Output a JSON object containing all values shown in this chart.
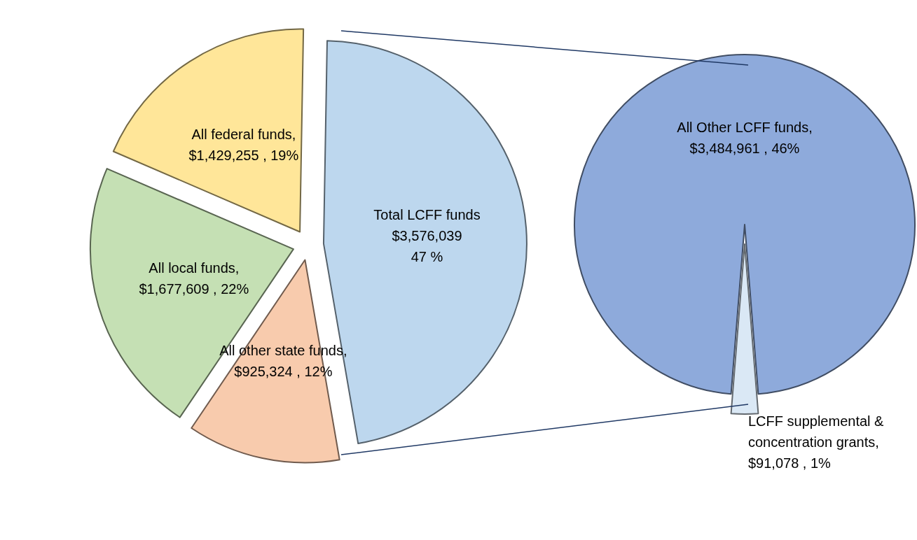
{
  "chart_data": [
    {
      "type": "pie",
      "categories": [
        "Total LCFF funds",
        "All other state funds",
        "All local funds",
        "All federal funds"
      ],
      "values": [
        3576039,
        925324,
        1677609,
        1429255
      ],
      "colors": [
        "#bdd7ee",
        "#f8cbad",
        "#c5e0b4",
        "#ffe699"
      ],
      "value_labels": [
        "\n$3,576,039\n47 %",
        ",\n$925,324 , 12%",
        ",\n$1,677,609 , 22%",
        ",\n$1,429,255 , 19%"
      ],
      "legend": false
    },
    {
      "type": "pie",
      "categories": [
        "All Other LCFF funds",
        "LCFF supplemental &\nconcentration grants"
      ],
      "values": [
        3484961,
        91078
      ],
      "colors": [
        "#8eaadb",
        "#dae8f5"
      ],
      "value_labels": [
        ",\n$3,484,961 , 46%",
        ",\n$91,078 , 1%"
      ],
      "legend": false
    }
  ]
}
